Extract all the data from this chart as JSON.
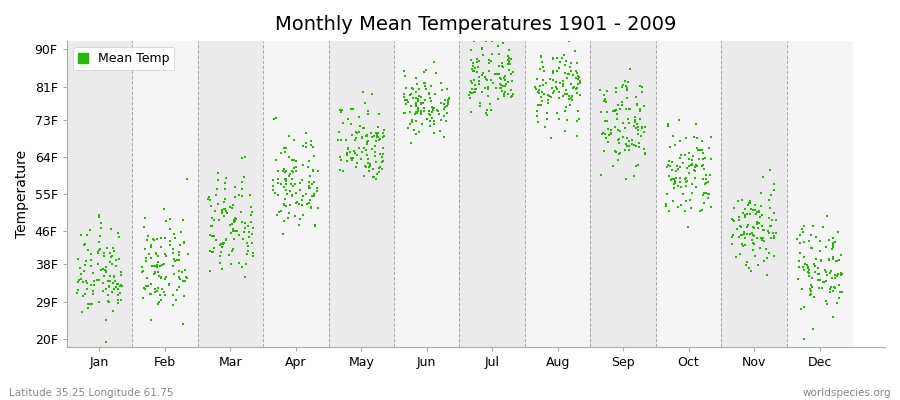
{
  "title": "Monthly Mean Temperatures 1901 - 2009",
  "ylabel": "Temperature",
  "xlabel": "",
  "ytick_labels": [
    "20F",
    "29F",
    "38F",
    "46F",
    "55F",
    "64F",
    "73F",
    "81F",
    "90F"
  ],
  "ytick_values": [
    20,
    29,
    38,
    46,
    55,
    64,
    73,
    81,
    90
  ],
  "ylim": [
    18,
    92
  ],
  "months": [
    "Jan",
    "Feb",
    "Mar",
    "Apr",
    "May",
    "Jun",
    "Jul",
    "Aug",
    "Sep",
    "Oct",
    "Nov",
    "Dec"
  ],
  "xlim": [
    0.0,
    12.5
  ],
  "dot_color": "#22bb00",
  "dot_size": 3,
  "background_color": "#ffffff",
  "plot_bg_even": "#ebebeb",
  "plot_bg_odd": "#f5f5f5",
  "grid_color": "#888888",
  "title_fontsize": 14,
  "axis_fontsize": 10,
  "tick_fontsize": 9,
  "legend_label": "Mean Temp",
  "footer_left": "Latitude 35.25 Longitude 61.75",
  "footer_right": "worldspecies.org",
  "monthly_mean_F": [
    35.5,
    37.0,
    47.0,
    57.5,
    67.5,
    77.0,
    83.0,
    80.5,
    72.0,
    59.5,
    47.0,
    37.5
  ],
  "monthly_std_F": [
    5.5,
    5.5,
    6.5,
    6.0,
    5.0,
    4.0,
    3.5,
    4.5,
    5.5,
    6.0,
    5.5,
    5.5
  ],
  "n_years": 109,
  "seed": 12345
}
